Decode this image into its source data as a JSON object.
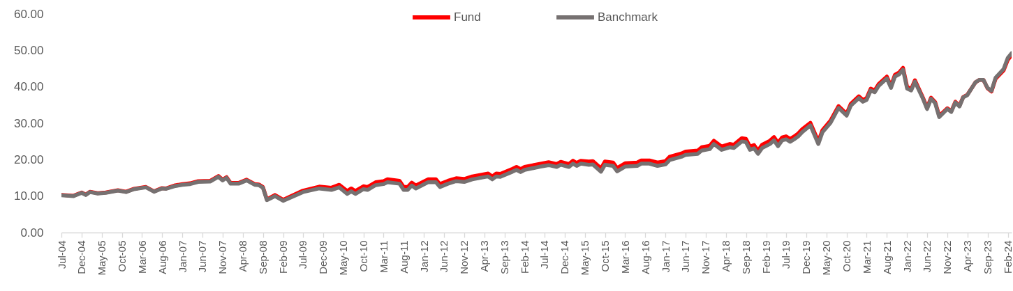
{
  "chart_data": {
    "type": "line",
    "x": [
      "2004-07",
      "2004-10",
      "2004-12",
      "2005-01",
      "2005-02",
      "2005-04",
      "2005-06",
      "2005-09",
      "2005-11",
      "2006-01",
      "2006-04",
      "2006-06",
      "2006-08",
      "2006-09",
      "2006-11",
      "2007-01",
      "2007-03",
      "2007-05",
      "2007-08",
      "2007-10",
      "2007-11",
      "2007-12",
      "2008-01",
      "2008-03",
      "2008-05",
      "2008-07",
      "2008-08",
      "2008-09",
      "2008-10",
      "2008-12",
      "2009-02",
      "2009-07",
      "2009-11",
      "2010-02",
      "2010-04",
      "2010-06",
      "2010-07",
      "2010-08",
      "2010-10",
      "2010-11",
      "2011-01",
      "2011-03",
      "2011-04",
      "2011-07",
      "2011-08",
      "2011-09",
      "2011-10",
      "2011-11",
      "2012-02",
      "2012-04",
      "2012-05",
      "2012-07",
      "2012-09",
      "2012-11",
      "2013-01",
      "2013-05",
      "2013-06",
      "2013-07",
      "2013-08",
      "2013-11",
      "2013-12",
      "2014-01",
      "2014-02",
      "2014-06",
      "2014-08",
      "2014-10",
      "2014-11",
      "2015-01",
      "2015-02",
      "2015-03",
      "2015-04",
      "2015-06",
      "2015-07",
      "2015-09",
      "2015-10",
      "2015-12",
      "2016-01",
      "2016-03",
      "2016-06",
      "2016-07",
      "2016-09",
      "2016-11",
      "2017-01",
      "2017-02",
      "2017-05",
      "2017-06",
      "2017-09",
      "2017-10",
      "2017-12",
      "2018-01",
      "2018-03",
      "2018-05",
      "2018-06",
      "2018-08",
      "2018-09",
      "2018-10",
      "2018-11",
      "2018-12",
      "2019-01",
      "2019-03",
      "2019-04",
      "2019-05",
      "2019-06",
      "2019-07",
      "2019-08",
      "2019-09",
      "2019-10",
      "2019-11",
      "2020-01",
      "2020-03",
      "2020-04",
      "2020-06",
      "2020-08",
      "2020-10",
      "2020-11",
      "2021-01",
      "2021-02",
      "2021-03",
      "2021-04",
      "2021-05",
      "2021-06",
      "2021-08",
      "2021-09",
      "2021-10",
      "2021-11",
      "2021-12",
      "2022-01",
      "2022-02",
      "2022-03",
      "2022-05",
      "2022-06",
      "2022-07",
      "2022-08",
      "2022-09",
      "2022-11",
      "2022-12",
      "2023-01",
      "2023-02",
      "2023-03",
      "2023-04",
      "2023-06",
      "2023-07",
      "2023-08",
      "2023-09",
      "2023-10",
      "2023-11",
      "2024-01",
      "2024-02",
      "2024-03"
    ],
    "series": [
      {
        "name": "Fund",
        "color": "#ff0000",
        "values": [
          10.3,
          10.1,
          11.0,
          10.4,
          11.2,
          10.8,
          11.0,
          11.6,
          11.2,
          12.0,
          12.5,
          11.3,
          12.2,
          12.1,
          12.9,
          13.3,
          13.5,
          14.1,
          14.2,
          15.5,
          14.5,
          15.2,
          13.6,
          13.6,
          14.5,
          13.3,
          13.2,
          12.5,
          9.1,
          10.3,
          9.0,
          11.5,
          12.6,
          12.3,
          13.1,
          11.4,
          12.1,
          11.4,
          12.7,
          12.5,
          13.8,
          14.1,
          14.6,
          14.2,
          12.5,
          12.5,
          13.7,
          12.9,
          14.6,
          14.6,
          13.3,
          14.2,
          14.9,
          14.7,
          15.4,
          16.2,
          15.4,
          16.2,
          16.1,
          17.5,
          18.0,
          17.4,
          18.0,
          18.9,
          19.3,
          18.8,
          19.4,
          18.8,
          19.7,
          19.1,
          19.7,
          19.5,
          19.6,
          17.6,
          19.5,
          19.2,
          17.7,
          19.0,
          19.2,
          19.8,
          19.8,
          19.2,
          19.6,
          20.8,
          21.7,
          22.2,
          22.5,
          23.4,
          23.8,
          25.2,
          23.6,
          24.3,
          24.1,
          25.9,
          25.7,
          23.6,
          24.0,
          22.5,
          24.1,
          25.2,
          26.2,
          24.6,
          26.1,
          26.4,
          25.7,
          26.4,
          27.2,
          28.4,
          30.1,
          25.0,
          28.1,
          30.7,
          34.7,
          32.6,
          35.3,
          37.4,
          36.4,
          36.9,
          39.5,
          39.0,
          40.8,
          42.8,
          40.2,
          43.3,
          43.9,
          45.2,
          40.0,
          39.4,
          41.8,
          37.0,
          34.2,
          37.0,
          35.8,
          32.0,
          34.1,
          33.3,
          35.9,
          34.8,
          37.2,
          37.8,
          41.2,
          41.9,
          41.9,
          39.6,
          38.7,
          42.2,
          44.5,
          47.4,
          48.7
        ]
      },
      {
        "name": "Banchmark",
        "color": "#767171",
        "values": [
          10.2,
          10.0,
          10.9,
          10.3,
          11.1,
          10.7,
          10.9,
          11.5,
          11.1,
          11.9,
          12.4,
          11.2,
          12.1,
          12.0,
          12.7,
          13.1,
          13.3,
          13.9,
          14.0,
          15.3,
          14.3,
          15.0,
          13.4,
          13.4,
          14.3,
          13.1,
          13.0,
          12.3,
          8.9,
          10.0,
          8.7,
          11.1,
          12.1,
          11.7,
          12.4,
          10.6,
          11.3,
          10.6,
          11.9,
          11.7,
          13.0,
          13.3,
          13.8,
          13.4,
          11.7,
          11.7,
          12.9,
          12.1,
          13.8,
          13.8,
          12.5,
          13.4,
          14.1,
          13.9,
          14.6,
          15.4,
          14.6,
          15.4,
          15.3,
          16.7,
          17.2,
          16.6,
          17.2,
          18.1,
          18.5,
          18.0,
          18.6,
          18.0,
          18.9,
          18.3,
          18.9,
          18.6,
          18.7,
          16.7,
          18.6,
          18.3,
          16.8,
          18.1,
          18.3,
          18.9,
          18.9,
          18.3,
          18.7,
          19.9,
          20.8,
          21.3,
          21.6,
          22.5,
          22.9,
          24.3,
          22.7,
          23.4,
          23.2,
          25.0,
          24.8,
          22.7,
          23.1,
          21.6,
          23.2,
          24.3,
          25.3,
          23.7,
          25.3,
          25.6,
          24.9,
          25.6,
          26.4,
          27.6,
          29.4,
          24.3,
          27.5,
          30.1,
          34.2,
          32.1,
          34.8,
          36.9,
          35.9,
          36.4,
          39.0,
          38.5,
          40.3,
          42.3,
          39.7,
          42.8,
          43.4,
          44.7,
          39.5,
          39.0,
          41.4,
          36.7,
          33.9,
          36.7,
          35.5,
          31.7,
          33.9,
          33.1,
          35.7,
          34.6,
          37.1,
          37.7,
          41.2,
          41.9,
          41.9,
          39.7,
          38.9,
          42.5,
          44.9,
          47.9,
          49.2
        ]
      }
    ],
    "xlim": [
      "2004-07",
      "2024-03"
    ],
    "xticks": [
      {
        "value": "2004-07",
        "label": "Jul-04"
      },
      {
        "value": "2004-12",
        "label": "Dec-04"
      },
      {
        "value": "2005-05",
        "label": "May-05"
      },
      {
        "value": "2005-10",
        "label": "Oct-05"
      },
      {
        "value": "2006-03",
        "label": "Mar-06"
      },
      {
        "value": "2006-08",
        "label": "Aug-06"
      },
      {
        "value": "2007-01",
        "label": "Jan-07"
      },
      {
        "value": "2007-06",
        "label": "Jun-07"
      },
      {
        "value": "2007-11",
        "label": "Nov-07"
      },
      {
        "value": "2008-04",
        "label": "Apr-08"
      },
      {
        "value": "2008-09",
        "label": "Sep-08"
      },
      {
        "value": "2009-02",
        "label": "Feb-09"
      },
      {
        "value": "2009-07",
        "label": "Jul-09"
      },
      {
        "value": "2009-12",
        "label": "Dec-09"
      },
      {
        "value": "2010-05",
        "label": "May-10"
      },
      {
        "value": "2010-10",
        "label": "Oct-10"
      },
      {
        "value": "2011-03",
        "label": "Mar-11"
      },
      {
        "value": "2011-08",
        "label": "Aug-11"
      },
      {
        "value": "2012-01",
        "label": "Jan-12"
      },
      {
        "value": "2012-06",
        "label": "Jun-12"
      },
      {
        "value": "2012-11",
        "label": "Nov-12"
      },
      {
        "value": "2013-04",
        "label": "Apr-13"
      },
      {
        "value": "2013-09",
        "label": "Sep-13"
      },
      {
        "value": "2014-02",
        "label": "Feb-14"
      },
      {
        "value": "2014-07",
        "label": "Jul-14"
      },
      {
        "value": "2014-12",
        "label": "Dec-14"
      },
      {
        "value": "2015-05",
        "label": "May-15"
      },
      {
        "value": "2015-10",
        "label": "Oct-15"
      },
      {
        "value": "2016-03",
        "label": "Mar-16"
      },
      {
        "value": "2016-08",
        "label": "Aug-16"
      },
      {
        "value": "2017-01",
        "label": "Jan-17"
      },
      {
        "value": "2017-06",
        "label": "Jun-17"
      },
      {
        "value": "2017-11",
        "label": "Nov-17"
      },
      {
        "value": "2018-04",
        "label": "Apr-18"
      },
      {
        "value": "2018-09",
        "label": "Sep-18"
      },
      {
        "value": "2019-02",
        "label": "Feb-19"
      },
      {
        "value": "2019-07",
        "label": "Jul-19"
      },
      {
        "value": "2019-12",
        "label": "Dec-19"
      },
      {
        "value": "2020-05",
        "label": "May-20"
      },
      {
        "value": "2020-10",
        "label": "Oct-20"
      },
      {
        "value": "2021-03",
        "label": "Mar-21"
      },
      {
        "value": "2021-08",
        "label": "Aug-21"
      },
      {
        "value": "2022-01",
        "label": "Jan-22"
      },
      {
        "value": "2022-06",
        "label": "Jun-22"
      },
      {
        "value": "2022-11",
        "label": "Nov-22"
      },
      {
        "value": "2023-04",
        "label": "Apr-23"
      },
      {
        "value": "2023-09",
        "label": "Sep-23"
      },
      {
        "value": "2024-02",
        "label": "Feb-24"
      }
    ],
    "ylim": [
      0,
      60
    ],
    "yticks": [
      {
        "value": 0,
        "label": "0.00"
      },
      {
        "value": 10,
        "label": "10.00"
      },
      {
        "value": 20,
        "label": "20.00"
      },
      {
        "value": 30,
        "label": "30.00"
      },
      {
        "value": 40,
        "label": "40.00"
      },
      {
        "value": 50,
        "label": "50.00"
      },
      {
        "value": 60,
        "label": "60.00"
      }
    ],
    "legend": "top"
  }
}
